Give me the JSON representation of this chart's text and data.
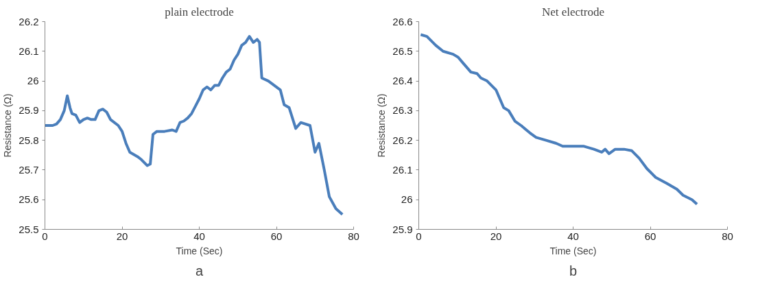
{
  "chart_data": [
    {
      "type": "line",
      "title": "plain electrode",
      "xlabel": "Time (Sec)",
      "ylabel": "Resistance (Ω)",
      "annotations": [
        "a"
      ],
      "x": [
        0,
        2,
        3,
        4,
        5,
        5.8,
        6.5,
        7,
        8,
        9,
        10,
        11,
        12,
        13,
        14,
        15,
        16,
        17,
        19,
        20,
        21,
        22,
        24,
        25,
        26.5,
        27.3,
        28,
        29,
        31,
        33,
        34,
        35,
        36,
        37,
        38,
        39,
        40,
        41,
        42,
        43,
        44,
        45,
        46,
        47,
        48,
        49,
        50,
        51,
        52,
        53,
        54,
        55,
        55.6,
        56.2,
        57.9,
        61,
        62,
        63.3,
        65,
        66.3,
        68.7,
        70,
        71,
        72.4,
        73.7,
        75.4,
        77.1
      ],
      "series": [
        {
          "color": "#4a7ebb",
          "values": [
            25.85,
            25.85,
            25.855,
            25.87,
            25.9,
            25.95,
            25.91,
            25.89,
            25.885,
            25.86,
            25.87,
            25.875,
            25.87,
            25.87,
            25.9,
            25.905,
            25.895,
            25.87,
            25.85,
            25.83,
            25.79,
            25.76,
            25.745,
            25.735,
            25.715,
            25.72,
            25.82,
            25.83,
            25.83,
            25.835,
            25.83,
            25.86,
            25.865,
            25.875,
            25.89,
            25.915,
            25.94,
            25.97,
            25.98,
            25.97,
            25.985,
            25.985,
            26.01,
            26.03,
            26.04,
            26.07,
            26.09,
            26.12,
            26.13,
            26.15,
            26.13,
            26.14,
            26.13,
            26.01,
            26.0,
            25.97,
            25.92,
            25.91,
            25.84,
            25.86,
            25.85,
            25.76,
            25.79,
            25.7,
            25.61,
            25.57,
            25.55
          ]
        }
      ],
      "xlim": [
        0,
        80
      ],
      "xticks": [
        0,
        20,
        40,
        60,
        80
      ],
      "ylim": [
        25.5,
        26.2
      ],
      "yticks": [
        25.5,
        25.6,
        25.7,
        25.8,
        25.9,
        26,
        26.1,
        26.2
      ],
      "grid": false,
      "line_style": "solid",
      "marker": "none"
    },
    {
      "type": "line",
      "title": "Net electrode",
      "xlabel": "Time (Sec)",
      "ylabel": "Resistance (Ω)",
      "annotations": [
        "b"
      ],
      "x": [
        0.5,
        2.1,
        4.4,
        6.3,
        8.9,
        10.2,
        11.5,
        13.5,
        15.1,
        16.1,
        17.7,
        20,
        22,
        23.3,
        24.9,
        26.5,
        28.8,
        30.4,
        33,
        35.6,
        37.3,
        40.2,
        42.8,
        45.4,
        47.4,
        48.3,
        49.3,
        50.9,
        53.2,
        55.2,
        57.1,
        59.1,
        61.4,
        64.3,
        66.9,
        68.5,
        70.8,
        72.1
      ],
      "series": [
        {
          "color": "#4a7ebb",
          "values": [
            26.556,
            26.55,
            26.52,
            26.5,
            26.49,
            26.48,
            26.46,
            26.43,
            26.425,
            26.41,
            26.4,
            26.37,
            26.31,
            26.3,
            26.265,
            26.25,
            26.225,
            26.21,
            26.2,
            26.19,
            26.18,
            26.18,
            26.18,
            26.17,
            26.16,
            26.17,
            26.155,
            26.17,
            26.17,
            26.165,
            26.14,
            26.105,
            26.075,
            26.055,
            26.035,
            26.015,
            26.0,
            25.985
          ]
        }
      ],
      "xlim": [
        0,
        80
      ],
      "xticks": [
        0,
        20,
        40,
        60,
        80
      ],
      "ylim": [
        25.9,
        26.6
      ],
      "yticks": [
        25.9,
        26,
        26.1,
        26.2,
        26.3,
        26.4,
        26.5,
        26.6
      ],
      "grid": false,
      "line_style": "solid",
      "marker": "none"
    }
  ]
}
